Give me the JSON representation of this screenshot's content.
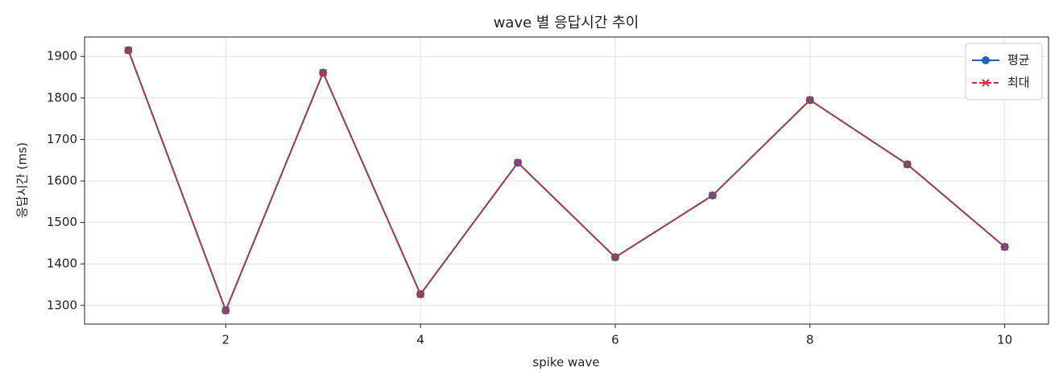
{
  "chart_data": {
    "type": "line",
    "title": "wave 별 응답시간 추이",
    "x_label": "spike wave",
    "y_label": "응답시간 (ms)",
    "x": [
      1,
      2,
      3,
      4,
      5,
      6,
      7,
      8,
      9,
      10
    ],
    "series": [
      {
        "name": "평균",
        "color": "#1f63b5",
        "marker": "o",
        "linestyle": "solid",
        "values": [
          1915,
          1288,
          1861,
          1327,
          1644,
          1416,
          1565,
          1795,
          1640,
          1441
        ]
      },
      {
        "name": "최대",
        "color": "#d03030",
        "marker": "x",
        "linestyle": "dashed",
        "values": [
          1915,
          1288,
          1861,
          1327,
          1644,
          1416,
          1565,
          1795,
          1640,
          1441
        ]
      }
    ],
    "xlim": [
      0.55,
      10.45
    ],
    "xticks": [
      2,
      4,
      6,
      8,
      10
    ],
    "ylim": [
      1255,
      1947
    ],
    "yticks": [
      1300,
      1400,
      1500,
      1600,
      1700,
      1800,
      1900
    ],
    "grid": true,
    "legend": "upper right"
  }
}
